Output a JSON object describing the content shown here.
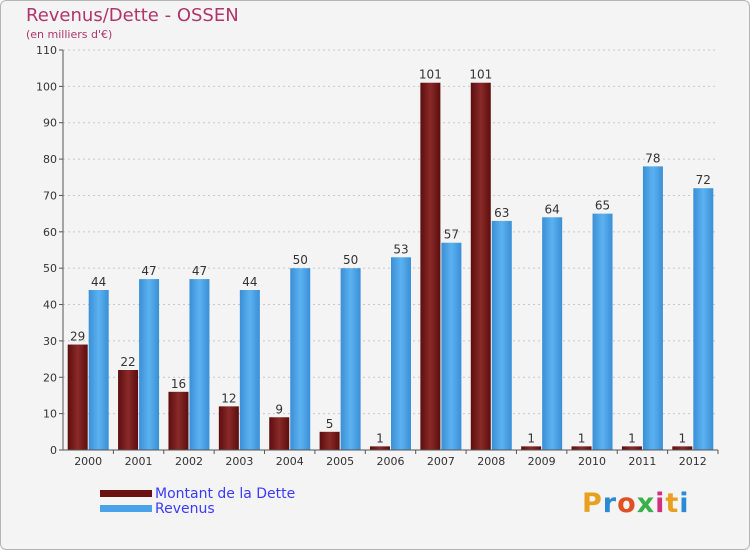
{
  "chart_data": {
    "type": "bar",
    "title": "Revenus/Dette - OSSEN",
    "subtitle": "(en milliers d'€)",
    "xlabel": "",
    "ylabel": "",
    "ylim": [
      0,
      110
    ],
    "yticks": [
      0,
      10,
      20,
      30,
      40,
      50,
      60,
      70,
      80,
      90,
      100,
      110
    ],
    "grid": true,
    "categories": [
      "2000",
      "2001",
      "2002",
      "2003",
      "2004",
      "2005",
      "2006",
      "2007",
      "2008",
      "2009",
      "2010",
      "2011",
      "2012"
    ],
    "series": [
      {
        "name": "Montant de la Dette",
        "color": "#7a1a1a",
        "values": [
          29,
          22,
          16,
          12,
          9,
          5,
          1,
          101,
          101,
          1,
          1,
          1,
          1
        ]
      },
      {
        "name": "Revenus",
        "color": "#4aa3e8",
        "values": [
          44,
          47,
          47,
          44,
          50,
          50,
          53,
          57,
          63,
          64,
          65,
          78,
          72
        ]
      }
    ],
    "legend_position": "bottom-left"
  },
  "logo": {
    "text": "Proxiti"
  },
  "colors": {
    "title": "#b0356b",
    "legend_text": "#3a3aff",
    "axis_text": "#333333"
  }
}
